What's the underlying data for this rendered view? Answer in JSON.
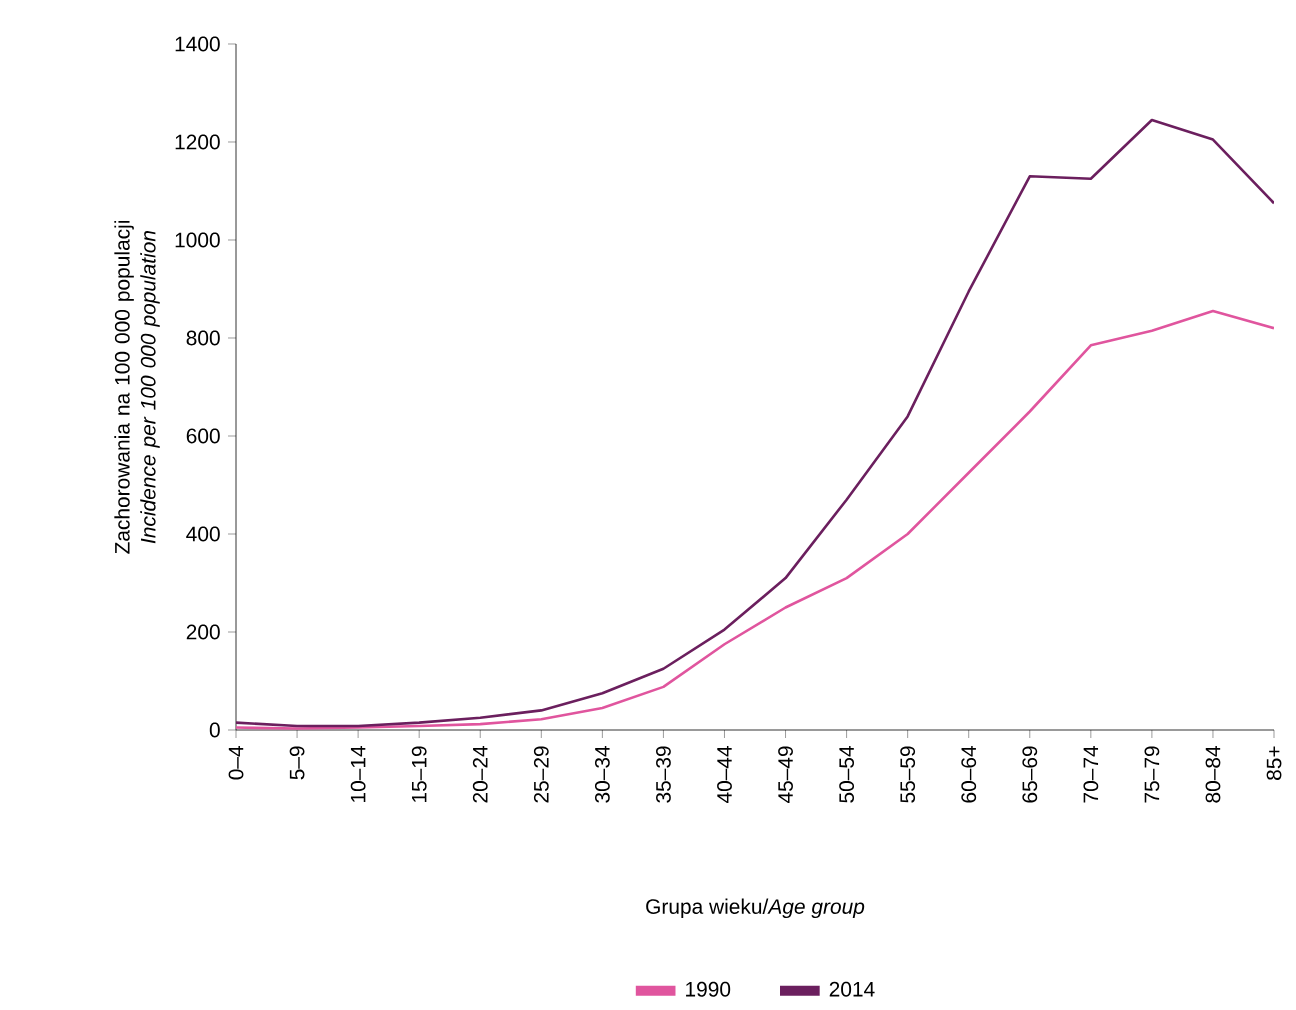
{
  "chart_data": {
    "type": "line",
    "xlabel": "Grupa wieku/*Age group*",
    "ylabel": "Zachorowania na 100 000 populacji *Incidence per 100 000 population*",
    "categories": [
      "0–4",
      "5–9",
      "10–14",
      "15–19",
      "20–24",
      "25–29",
      "30–34",
      "35–39",
      "40–44",
      "45–49",
      "50–54",
      "55–59",
      "60–64",
      "65–69",
      "70–74",
      "75–79",
      "80–84",
      "85+"
    ],
    "series": [
      {
        "name": "1990",
        "color": "#e0559e",
        "values": [
          5,
          3,
          5,
          8,
          12,
          22,
          45,
          88,
          175,
          250,
          310,
          400,
          525,
          650,
          785,
          815,
          855,
          820
        ]
      },
      {
        "name": "2014",
        "color": "#6b1f5e",
        "values": [
          15,
          8,
          8,
          15,
          25,
          40,
          75,
          125,
          205,
          310,
          470,
          640,
          895,
          1130,
          1125,
          1245,
          1205,
          1075
        ]
      }
    ],
    "ylim": [
      0,
      1400
    ],
    "yticks": [
      0,
      200,
      400,
      600,
      800,
      1000,
      1200,
      1400
    ],
    "grid": false,
    "legend": "bottom",
    "marker": "none",
    "line_style": "solid"
  }
}
